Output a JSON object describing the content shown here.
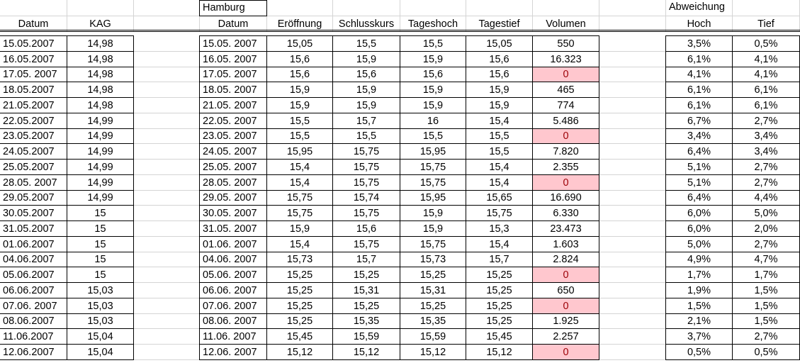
{
  "header": {
    "group1": "Hamburg",
    "group2": "Abweichung",
    "columns": [
      "Datum",
      "KAG",
      "Datum",
      "Eröffnung",
      "Schlusskurs",
      "Tageshoch",
      "Tagestief",
      "Volumen",
      "Hoch",
      "Tief"
    ]
  },
  "table": {
    "highlight_color": "#ffc7ce",
    "highlight_text_color": "#9c0006",
    "rows": [
      [
        "15.05.2007",
        "14,98",
        "15.05. 2007",
        "15,05",
        "15,5",
        "15,5",
        "15,05",
        "550",
        "3,5%",
        "0,5%"
      ],
      [
        "16.05.2007",
        "14,98",
        "16.05. 2007",
        "15,6",
        "15,9",
        "15,9",
        "15,6",
        "16.323",
        "6,1%",
        "4,1%"
      ],
      [
        "17.05. 2007",
        "14,98",
        "17.05. 2007",
        "15,6",
        "15,6",
        "15,6",
        "15,6",
        "0",
        "4,1%",
        "4,1%"
      ],
      [
        "18.05.2007",
        "14,98",
        "18.05. 2007",
        "15,9",
        "15,9",
        "15,9",
        "15,9",
        "465",
        "6,1%",
        "6,1%"
      ],
      [
        "21.05.2007",
        "14,98",
        "21.05. 2007",
        "15,9",
        "15,9",
        "15,9",
        "15,9",
        "774",
        "6,1%",
        "6,1%"
      ],
      [
        "22.05.2007",
        "14,99",
        "22.05. 2007",
        "15,5",
        "15,7",
        "16",
        "15,4",
        "5.486",
        "6,7%",
        "2,7%"
      ],
      [
        "23.05.2007",
        "14,99",
        "23.05. 2007",
        "15,5",
        "15,5",
        "15,5",
        "15,5",
        "0",
        "3,4%",
        "3,4%"
      ],
      [
        "24.05.2007",
        "14,99",
        "24.05. 2007",
        "15,95",
        "15,75",
        "15,95",
        "15,5",
        "7.820",
        "6,4%",
        "3,4%"
      ],
      [
        "25.05.2007",
        "14,99",
        "25.05. 2007",
        "15,4",
        "15,75",
        "15,75",
        "15,4",
        "2.355",
        "5,1%",
        "2,7%"
      ],
      [
        "28.05. 2007",
        "14,99",
        "28.05. 2007",
        "15,4",
        "15,75",
        "15,75",
        "15,4",
        "0",
        "5,1%",
        "2,7%"
      ],
      [
        "29.05.2007",
        "14,99",
        "29.05. 2007",
        "15,75",
        "15,74",
        "15,95",
        "15,65",
        "16.690",
        "6,4%",
        "4,4%"
      ],
      [
        "30.05.2007",
        "15",
        "30.05. 2007",
        "15,75",
        "15,75",
        "15,9",
        "15,75",
        "6.330",
        "6,0%",
        "5,0%"
      ],
      [
        "31.05.2007",
        "15",
        "31.05. 2007",
        "15,9",
        "15,6",
        "15,9",
        "15,3",
        "23.473",
        "6,0%",
        "2,0%"
      ],
      [
        "01.06.2007",
        "15",
        "01.06. 2007",
        "15,4",
        "15,75",
        "15,75",
        "15,4",
        "1.603",
        "5,0%",
        "2,7%"
      ],
      [
        "04.06.2007",
        "15",
        "04.06. 2007",
        "15,73",
        "15,7",
        "15,73",
        "15,7",
        "2.824",
        "4,9%",
        "4,7%"
      ],
      [
        "05.06.2007",
        "15",
        "05.06. 2007",
        "15,25",
        "15,25",
        "15,25",
        "15,25",
        "0",
        "1,7%",
        "1,7%"
      ],
      [
        "06.06.2007",
        "15,03",
        "06.06. 2007",
        "15,25",
        "15,31",
        "15,31",
        "15,25",
        "650",
        "1,9%",
        "1,5%"
      ],
      [
        "07.06. 2007",
        "15,03",
        "07.06. 2007",
        "15,25",
        "15,25",
        "15,25",
        "15,25",
        "0",
        "1,5%",
        "1,5%"
      ],
      [
        "08.06.2007",
        "15,03",
        "08.06. 2007",
        "15,25",
        "15,35",
        "15,35",
        "15,25",
        "1.925",
        "2,1%",
        "1,5%"
      ],
      [
        "11.06.2007",
        "15,04",
        "11.06. 2007",
        "15,45",
        "15,59",
        "15,59",
        "15,45",
        "2.257",
        "3,7%",
        "2,7%"
      ],
      [
        "12.06.2007",
        "15,04",
        "12.06. 2007",
        "15,12",
        "15,12",
        "15,12",
        "15,12",
        "0",
        "0,5%",
        "0,5%"
      ]
    ]
  }
}
